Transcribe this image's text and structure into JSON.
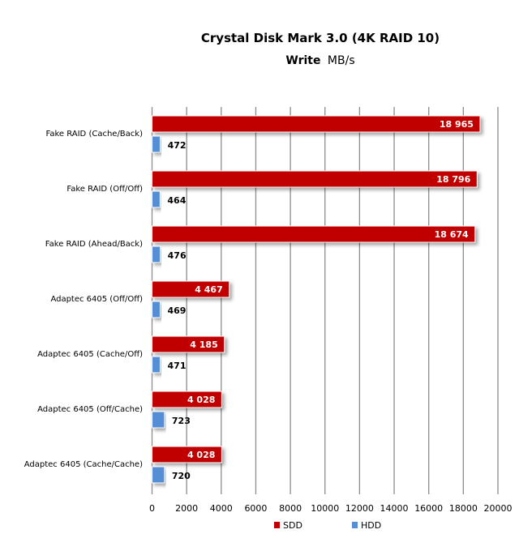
{
  "chart_data": {
    "type": "bar",
    "orientation": "horizontal",
    "title": "Crystal Disk Mark 3.0 (4K RAID 10)",
    "subtitle_bold": "Write",
    "subtitle_unit": "MB/s",
    "categories": [
      "Fake RAID (Cache/Back)",
      "Fake RAID (Off/Off)",
      "Fake RAID (Ahead/Back)",
      "Adaptec 6405 (Off/Off)",
      "Adaptec 6405 (Cache/Off)",
      "Adaptec 6405 (Off/Cache)",
      "Adaptec 6405 (Cache/Cache)"
    ],
    "series": [
      {
        "name": "SDD",
        "color": "#c00000",
        "values": [
          18965,
          18796,
          18674,
          4467,
          4185,
          4028,
          4028
        ],
        "labels": [
          "18 965",
          "18 796",
          "18 674",
          "4 467",
          "4 185",
          "4 028",
          "4 028"
        ]
      },
      {
        "name": "HDD",
        "color": "#558ed5",
        "values": [
          472,
          464,
          476,
          469,
          471,
          723,
          720
        ],
        "labels": [
          "472",
          "464",
          "476",
          "469",
          "471",
          "723",
          "720"
        ]
      }
    ],
    "xlim": [
      0,
      20000
    ],
    "xticks": [
      "0",
      "2000",
      "4000",
      "6000",
      "8000",
      "10000",
      "12000",
      "14000",
      "16000",
      "18000",
      "20000"
    ],
    "grid": true,
    "legend": "bottom"
  }
}
